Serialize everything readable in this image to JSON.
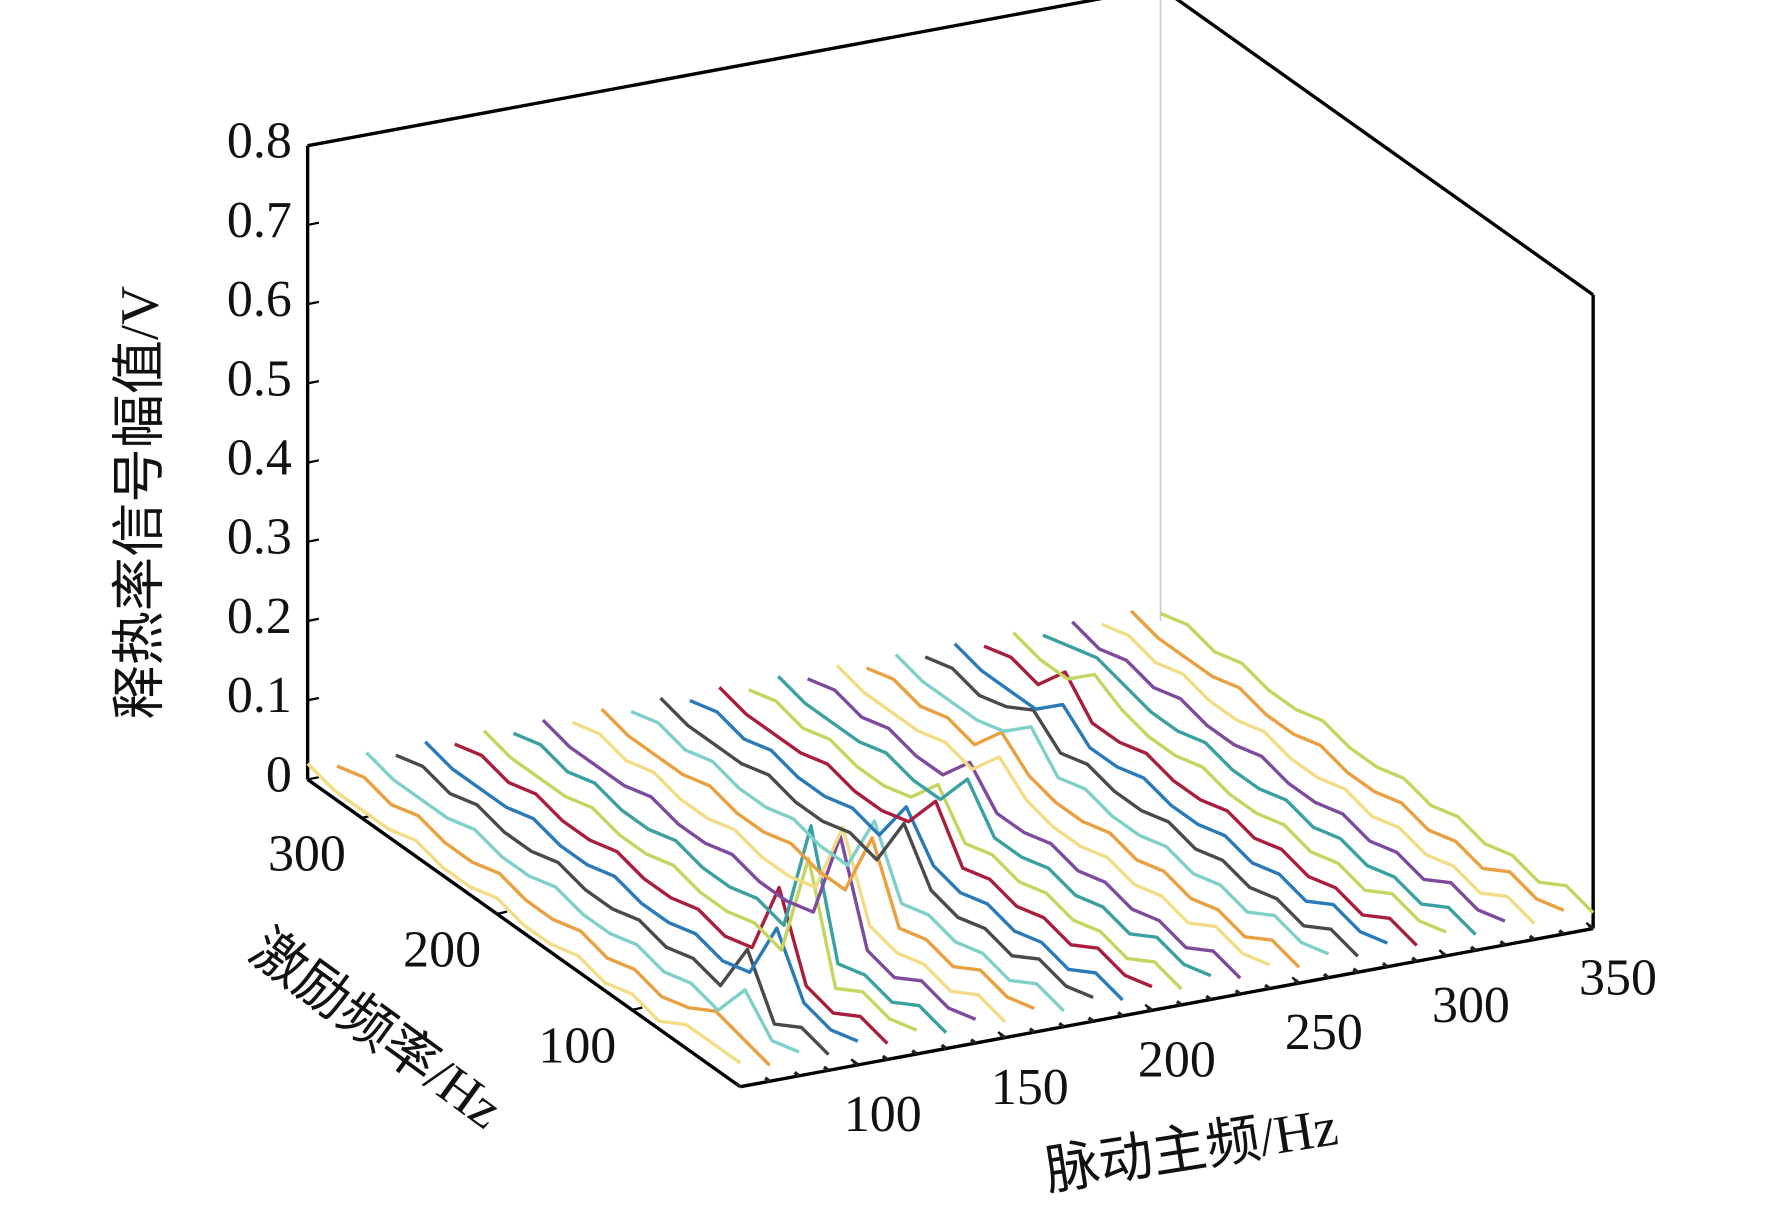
{
  "chart_data": {
    "type": "waterfall3d",
    "ylabel": "释热率信号幅值/V",
    "zlabel": "激励频率/Hz",
    "xlabel": "脉动主频/Hz",
    "xlim": [
      60,
      350
    ],
    "xticks": [
      100,
      150,
      200,
      250,
      300,
      350
    ],
    "zlim": [
      20,
      340
    ],
    "zticks": [
      100,
      200,
      300
    ],
    "ylim": [
      0,
      0.8
    ],
    "yticks": [
      0,
      0.1,
      0.2,
      0.3,
      0.4,
      0.5,
      0.6,
      0.7,
      0.8
    ],
    "z": [
      20,
      40,
      60,
      80,
      100,
      120,
      140,
      160,
      180,
      200,
      220,
      240,
      260,
      280,
      300,
      320,
      340
    ],
    "series": [
      {
        "x": 60,
        "color": "#f2dc86",
        "values": [
          0.03,
          0.03,
          0.03,
          0.01,
          0.02,
          0.01,
          0.02,
          0.01,
          0.01,
          0.02,
          0.01,
          0.01,
          0.02,
          0.01,
          0.01,
          0.01,
          0.02
        ]
      },
      {
        "x": 70,
        "color": "#e8a040",
        "values": [
          0.02,
          0.03,
          0.04,
          0.02,
          0.01,
          0.02,
          0.01,
          0.02,
          0.01,
          0.01,
          0.02,
          0.01,
          0.01,
          0.02,
          0.01,
          0.02,
          0.01
        ]
      },
      {
        "x": 80,
        "color": "#7fd0c8",
        "values": [
          0.03,
          0.02,
          0.06,
          0.01,
          0.02,
          0.01,
          0.02,
          0.01,
          0.01,
          0.02,
          0.01,
          0.01,
          0.02,
          0.01,
          0.01,
          0.01,
          0.02
        ]
      },
      {
        "x": 90,
        "color": "#4a4a4a",
        "values": [
          0.02,
          0.03,
          0.01,
          0.08,
          0.01,
          0.02,
          0.01,
          0.02,
          0.01,
          0.01,
          0.02,
          0.01,
          0.01,
          0.02,
          0.01,
          0.02,
          0.01
        ]
      },
      {
        "x": 100,
        "color": "#2a7ab8",
        "values": [
          0.03,
          0.02,
          0.03,
          0.1,
          0.02,
          0.01,
          0.02,
          0.01,
          0.01,
          0.02,
          0.01,
          0.01,
          0.02,
          0.01,
          0.01,
          0.01,
          0.02
        ]
      },
      {
        "x": 110,
        "color": "#a81e3c",
        "values": [
          0.02,
          0.03,
          0.01,
          0.02,
          0.12,
          0.02,
          0.01,
          0.02,
          0.01,
          0.01,
          0.02,
          0.01,
          0.01,
          0.02,
          0.01,
          0.02,
          0.01
        ]
      },
      {
        "x": 120,
        "color": "#c4d660",
        "values": [
          0.03,
          0.02,
          0.03,
          0.01,
          0.15,
          0.01,
          0.02,
          0.01,
          0.01,
          0.02,
          0.01,
          0.01,
          0.02,
          0.01,
          0.01,
          0.01,
          0.02
        ]
      },
      {
        "x": 130,
        "color": "#3aa0a0",
        "values": [
          0.02,
          0.03,
          0.01,
          0.02,
          0.01,
          0.16,
          0.01,
          0.02,
          0.01,
          0.01,
          0.02,
          0.01,
          0.01,
          0.02,
          0.01,
          0.02,
          0.01
        ]
      },
      {
        "x": 140,
        "color": "#7e4a9e",
        "values": [
          0.03,
          0.02,
          0.03,
          0.01,
          0.02,
          0.14,
          0.02,
          0.01,
          0.01,
          0.02,
          0.01,
          0.01,
          0.02,
          0.01,
          0.01,
          0.01,
          0.02
        ]
      },
      {
        "x": 150,
        "color": "#f2dc86",
        "values": [
          0.02,
          0.03,
          0.01,
          0.02,
          0.01,
          0.02,
          0.12,
          0.02,
          0.01,
          0.01,
          0.02,
          0.01,
          0.01,
          0.02,
          0.01,
          0.02,
          0.01
        ]
      },
      {
        "x": 160,
        "color": "#e8a040",
        "values": [
          0.03,
          0.02,
          0.03,
          0.01,
          0.02,
          0.01,
          0.1,
          0.01,
          0.01,
          0.02,
          0.01,
          0.01,
          0.02,
          0.01,
          0.01,
          0.01,
          0.02
        ]
      },
      {
        "x": 170,
        "color": "#7fd0c8",
        "values": [
          0.02,
          0.03,
          0.01,
          0.02,
          0.01,
          0.02,
          0.01,
          0.09,
          0.01,
          0.01,
          0.02,
          0.01,
          0.01,
          0.02,
          0.01,
          0.02,
          0.01
        ]
      },
      {
        "x": 180,
        "color": "#4a4a4a",
        "values": [
          0.03,
          0.02,
          0.03,
          0.01,
          0.02,
          0.01,
          0.02,
          0.08,
          0.01,
          0.02,
          0.01,
          0.01,
          0.02,
          0.01,
          0.01,
          0.01,
          0.02
        ]
      },
      {
        "x": 190,
        "color": "#2a7ab8",
        "values": [
          0.02,
          0.03,
          0.01,
          0.02,
          0.01,
          0.02,
          0.01,
          0.02,
          0.07,
          0.01,
          0.02,
          0.01,
          0.01,
          0.02,
          0.01,
          0.02,
          0.01
        ]
      },
      {
        "x": 200,
        "color": "#a81e3c",
        "values": [
          0.03,
          0.02,
          0.03,
          0.01,
          0.02,
          0.01,
          0.02,
          0.01,
          0.07,
          0.02,
          0.01,
          0.01,
          0.02,
          0.01,
          0.01,
          0.01,
          0.02
        ]
      },
      {
        "x": 210,
        "color": "#c4d660",
        "values": [
          0.02,
          0.03,
          0.01,
          0.02,
          0.01,
          0.02,
          0.01,
          0.02,
          0.01,
          0.06,
          0.02,
          0.01,
          0.01,
          0.02,
          0.01,
          0.02,
          0.01
        ]
      },
      {
        "x": 220,
        "color": "#3aa0a0",
        "values": [
          0.03,
          0.02,
          0.03,
          0.01,
          0.02,
          0.01,
          0.02,
          0.01,
          0.01,
          0.06,
          0.01,
          0.01,
          0.02,
          0.01,
          0.01,
          0.01,
          0.02
        ]
      },
      {
        "x": 230,
        "color": "#7e4a9e",
        "values": [
          0.02,
          0.03,
          0.01,
          0.02,
          0.01,
          0.02,
          0.01,
          0.02,
          0.01,
          0.01,
          0.05,
          0.01,
          0.01,
          0.02,
          0.01,
          0.02,
          0.01
        ]
      },
      {
        "x": 240,
        "color": "#f2dc86",
        "values": [
          0.03,
          0.02,
          0.03,
          0.01,
          0.02,
          0.01,
          0.02,
          0.01,
          0.01,
          0.02,
          0.05,
          0.01,
          0.02,
          0.01,
          0.01,
          0.01,
          0.02
        ]
      },
      {
        "x": 250,
        "color": "#e8a040",
        "values": [
          0.02,
          0.03,
          0.01,
          0.02,
          0.01,
          0.02,
          0.01,
          0.02,
          0.01,
          0.01,
          0.02,
          0.05,
          0.01,
          0.02,
          0.01,
          0.02,
          0.01
        ]
      },
      {
        "x": 260,
        "color": "#7fd0c8",
        "values": [
          0.03,
          0.02,
          0.03,
          0.01,
          0.02,
          0.01,
          0.02,
          0.01,
          0.01,
          0.02,
          0.01,
          0.05,
          0.02,
          0.01,
          0.01,
          0.01,
          0.02
        ]
      },
      {
        "x": 270,
        "color": "#4a4a4a",
        "values": [
          0.02,
          0.03,
          0.01,
          0.02,
          0.01,
          0.02,
          0.01,
          0.02,
          0.01,
          0.01,
          0.02,
          0.01,
          0.04,
          0.02,
          0.01,
          0.02,
          0.01
        ]
      },
      {
        "x": 280,
        "color": "#2a7ab8",
        "values": [
          0.03,
          0.02,
          0.03,
          0.01,
          0.02,
          0.01,
          0.02,
          0.01,
          0.01,
          0.02,
          0.01,
          0.01,
          0.04,
          0.01,
          0.01,
          0.01,
          0.02
        ]
      },
      {
        "x": 290,
        "color": "#a81e3c",
        "values": [
          0.02,
          0.03,
          0.01,
          0.02,
          0.01,
          0.02,
          0.01,
          0.02,
          0.01,
          0.01,
          0.02,
          0.01,
          0.01,
          0.05,
          0.01,
          0.02,
          0.01
        ]
      },
      {
        "x": 300,
        "color": "#c4d660",
        "values": [
          0.03,
          0.02,
          0.03,
          0.01,
          0.02,
          0.01,
          0.02,
          0.01,
          0.01,
          0.02,
          0.01,
          0.01,
          0.02,
          0.04,
          0.01,
          0.01,
          0.02
        ]
      },
      {
        "x": 310,
        "color": "#3aa0a0",
        "values": [
          0.02,
          0.03,
          0.01,
          0.02,
          0.01,
          0.02,
          0.01,
          0.02,
          0.01,
          0.01,
          0.02,
          0.01,
          0.01,
          0.02,
          0.03,
          0.02,
          0.01
        ]
      },
      {
        "x": 320,
        "color": "#7e4a9e",
        "values": [
          0.03,
          0.02,
          0.03,
          0.01,
          0.02,
          0.01,
          0.02,
          0.01,
          0.01,
          0.02,
          0.01,
          0.01,
          0.02,
          0.01,
          0.02,
          0.01,
          0.02
        ]
      },
      {
        "x": 330,
        "color": "#f2dc86",
        "values": [
          0.02,
          0.03,
          0.01,
          0.02,
          0.01,
          0.02,
          0.01,
          0.02,
          0.01,
          0.01,
          0.02,
          0.01,
          0.01,
          0.02,
          0.01,
          0.02,
          0.01
        ]
      },
      {
        "x": 340,
        "color": "#e8a040",
        "values": [
          0.03,
          0.02,
          0.03,
          0.01,
          0.02,
          0.01,
          0.02,
          0.01,
          0.01,
          0.02,
          0.01,
          0.01,
          0.02,
          0.01,
          0.01,
          0.01,
          0.02
        ]
      },
      {
        "x": 350,
        "color": "#c4d660",
        "values": [
          0.02,
          0.03,
          0.01,
          0.02,
          0.01,
          0.02,
          0.01,
          0.02,
          0.01,
          0.01,
          0.02,
          0.01,
          0.01,
          0.02,
          0.01,
          0.02,
          0.01
        ]
      }
    ]
  }
}
